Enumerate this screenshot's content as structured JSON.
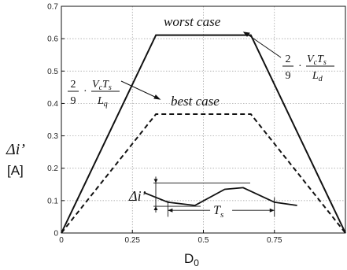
{
  "chart_data": {
    "type": "line",
    "xlabel": "D0",
    "ylabel_top": "Δi’",
    "ylabel_bottom": "[A]",
    "xlim": [
      0,
      1
    ],
    "ylim": [
      0,
      0.7
    ],
    "x_ticks": [
      0,
      0.25,
      0.5,
      0.75
    ],
    "x_tick_labels": [
      "0",
      "0.25",
      "0.5",
      "0.75"
    ],
    "y_ticks": [
      0,
      0.1,
      0.2,
      0.3,
      0.4,
      0.5,
      0.6,
      0.7
    ],
    "y_tick_labels": [
      "0",
      "0.1",
      "0.2",
      "0.3",
      "0.4",
      "0.5",
      "0.6",
      "0.7"
    ],
    "grid": true,
    "series": [
      {
        "name": "worst case",
        "style": "solid",
        "x": [
          0,
          0.333,
          0.667,
          1.0
        ],
        "y": [
          0,
          0.611,
          0.611,
          0
        ]
      },
      {
        "name": "best case",
        "style": "dashed",
        "x": [
          0,
          0.333,
          0.667,
          1.0
        ],
        "y": [
          0,
          0.367,
          0.367,
          0
        ]
      }
    ],
    "ripple_inset": {
      "x": [
        0.29,
        0.375,
        0.47,
        0.575,
        0.64,
        0.75,
        0.83
      ],
      "y": [
        0.125,
        0.095,
        0.085,
        0.135,
        0.14,
        0.095,
        0.085
      ],
      "delta_label": "Δi’",
      "period_label": "T",
      "period_sub": "s"
    },
    "annotations": [
      {
        "text": "worst case",
        "style": "italic"
      },
      {
        "text": "best case",
        "style": "italic"
      }
    ],
    "formula_left": {
      "coef_num": "2",
      "coef_den": "9",
      "num": "V",
      "num_sub1": "c",
      "num_mid": "T",
      "num_sub2": "s",
      "den": "L",
      "den_sub": "q"
    },
    "formula_right": {
      "coef_num": "2",
      "coef_den": "9",
      "num": "V",
      "num_sub1": "c",
      "num_mid": "T",
      "num_sub2": "s",
      "den": "L",
      "den_sub": "d"
    },
    "colors": {
      "line": "#111111",
      "grid": "#9a9a9a",
      "axis": "#111111"
    }
  }
}
